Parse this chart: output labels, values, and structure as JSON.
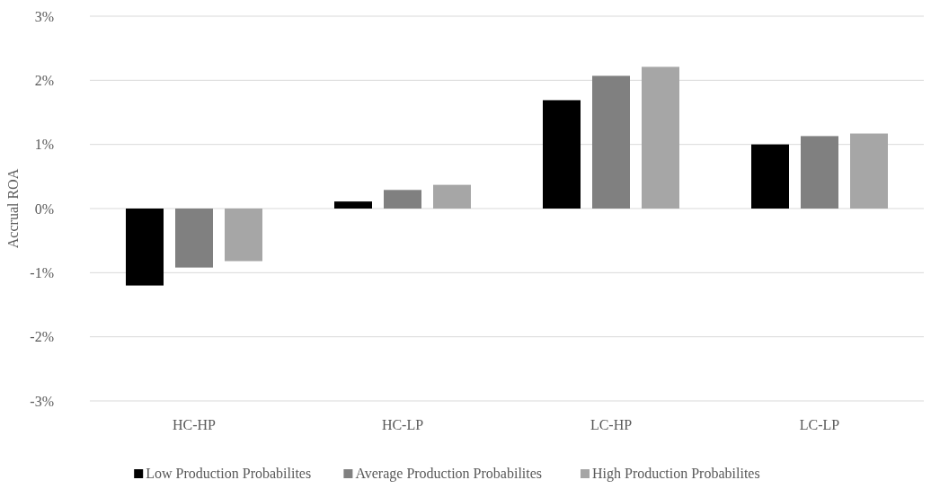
{
  "chart_data": {
    "type": "bar",
    "ylabel": "Accrual ROA",
    "categories": [
      "HC-HP",
      "HC-LP",
      "LC-HP",
      "LC-LP"
    ],
    "series": [
      {
        "name": "Low Production Probabilites",
        "color": "#000000",
        "values": [
          -1.2,
          0.11,
          1.69,
          1.0
        ]
      },
      {
        "name": "Average Production Probabilites",
        "color": "#808080",
        "values": [
          -0.92,
          0.29,
          2.07,
          1.13
        ]
      },
      {
        "name": "High Production Probabilites",
        "color": "#a6a6a6",
        "values": [
          -0.82,
          0.37,
          2.21,
          1.17
        ]
      }
    ],
    "ylim": [
      -3,
      3
    ],
    "yticks": [
      {
        "value": -3,
        "label": "-3%"
      },
      {
        "value": -2,
        "label": "-2%"
      },
      {
        "value": -1,
        "label": "-1%"
      },
      {
        "value": 0,
        "label": "0%"
      },
      {
        "value": 1,
        "label": "1%"
      },
      {
        "value": 2,
        "label": "2%"
      },
      {
        "value": 3,
        "label": "3%"
      }
    ],
    "grid": "y",
    "legend": "bottom"
  }
}
